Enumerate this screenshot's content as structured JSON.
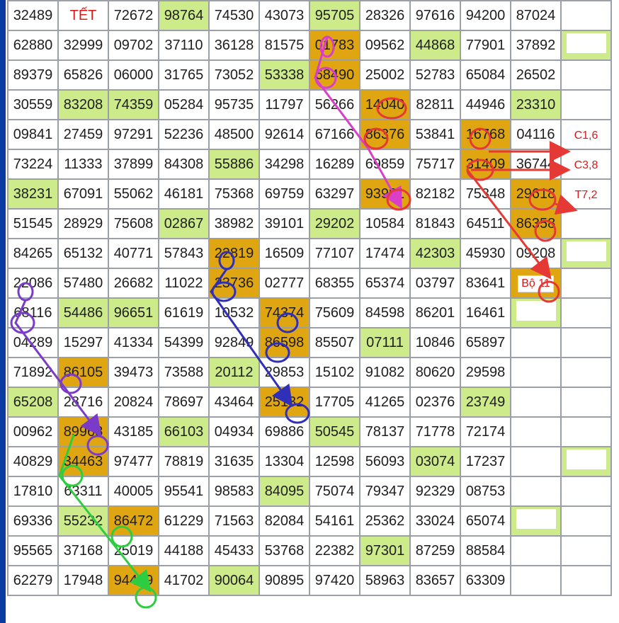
{
  "rows": [
    [
      "32489",
      "TẾT",
      "72672",
      "98764",
      "74530",
      "43073",
      "95705",
      "28326",
      "97616",
      "94200",
      "87024",
      ""
    ],
    [
      "62880",
      "32999",
      "09702",
      "37110",
      "36128",
      "81575",
      "01783",
      "09562",
      "44868",
      "77901",
      "37892",
      ""
    ],
    [
      "89379",
      "65826",
      "06000",
      "31765",
      "73052",
      "53338",
      "68490",
      "25002",
      "52783",
      "65084",
      "26502",
      ""
    ],
    [
      "30559",
      "83208",
      "74359",
      "05284",
      "95735",
      "11797",
      "56266",
      "14040",
      "82811",
      "44946",
      "23310",
      ""
    ],
    [
      "09841",
      "27459",
      "97291",
      "52236",
      "48500",
      "92614",
      "67166",
      "86376",
      "53841",
      "16768",
      "04116",
      "C1,6"
    ],
    [
      "73224",
      "11333",
      "37899",
      "84308",
      "55886",
      "34298",
      "16289",
      "69859",
      "75717",
      "31409",
      "36744",
      "C3,8"
    ],
    [
      "38231",
      "67091",
      "55062",
      "46181",
      "75368",
      "69759",
      "63297",
      "93981",
      "82182",
      "75348",
      "29618",
      "T7,2"
    ],
    [
      "51545",
      "28929",
      "75608",
      "02867",
      "38982",
      "39101",
      "29202",
      "10584",
      "81843",
      "64511",
      "86358",
      ""
    ],
    [
      "84265",
      "65132",
      "40771",
      "57843",
      "22819",
      "16509",
      "77107",
      "17474",
      "42303",
      "45930",
      "09208",
      ""
    ],
    [
      "22086",
      "57480",
      "26682",
      "11022",
      "23736",
      "02777",
      "68355",
      "65374",
      "03797",
      "83641",
      "Bộ 11",
      ""
    ],
    [
      "68116",
      "54486",
      "96651",
      "61619",
      "10532",
      "74374",
      "75609",
      "84598",
      "86201",
      "16461",
      "",
      ""
    ],
    [
      "04289",
      "15297",
      "41334",
      "54399",
      "92849",
      "86598",
      "85507",
      "07111",
      "10846",
      "65897",
      "",
      ""
    ],
    [
      "71892",
      "86105",
      "39473",
      "73588",
      "20112",
      "29853",
      "15102",
      "91082",
      "80620",
      "29598",
      "",
      ""
    ],
    [
      "65208",
      "28716",
      "20824",
      "78697",
      "43464",
      "25132",
      "17705",
      "41265",
      "02376",
      "23749",
      "",
      ""
    ],
    [
      "00962",
      "89968",
      "43185",
      "66103",
      "04934",
      "69886",
      "50545",
      "78137",
      "71778",
      "72174",
      "",
      ""
    ],
    [
      "40829",
      "34463",
      "97477",
      "78819",
      "31635",
      "13304",
      "12598",
      "56093",
      "03074",
      "17237",
      "",
      ""
    ],
    [
      "17810",
      "63311",
      "40005",
      "95541",
      "98583",
      "84095",
      "75074",
      "79347",
      "92329",
      "08753",
      "",
      ""
    ],
    [
      "69336",
      "55232",
      "86472",
      "61229",
      "71563",
      "82084",
      "54161",
      "25362",
      "33024",
      "65074",
      "",
      ""
    ],
    [
      "95565",
      "37168",
      "25019",
      "44188",
      "45433",
      "53768",
      "22382",
      "97301",
      "87259",
      "88584",
      "",
      ""
    ],
    [
      "62279",
      "17948",
      "94499",
      "41702",
      "90064",
      "90895",
      "97420",
      "58963",
      "83657",
      "63309",
      "",
      ""
    ]
  ],
  "green_cells": [
    [
      0,
      3
    ],
    [
      0,
      6
    ],
    [
      1,
      8
    ],
    [
      2,
      5
    ],
    [
      3,
      1
    ],
    [
      3,
      2
    ],
    [
      3,
      10
    ],
    [
      5,
      4
    ],
    [
      6,
      0
    ],
    [
      7,
      3
    ],
    [
      7,
      6
    ],
    [
      8,
      8
    ],
    [
      10,
      1
    ],
    [
      10,
      2
    ],
    [
      11,
      7
    ],
    [
      12,
      4
    ],
    [
      13,
      0
    ],
    [
      13,
      9
    ],
    [
      14,
      3
    ],
    [
      14,
      6
    ],
    [
      15,
      8
    ],
    [
      16,
      5
    ],
    [
      17,
      1
    ],
    [
      18,
      7
    ],
    [
      19,
      4
    ]
  ],
  "orange_cells": [
    [
      1,
      6
    ],
    [
      2,
      6
    ],
    [
      3,
      7
    ],
    [
      4,
      7
    ],
    [
      4,
      9
    ],
    [
      5,
      9
    ],
    [
      6,
      7
    ],
    [
      6,
      10
    ],
    [
      7,
      10
    ],
    [
      8,
      4
    ],
    [
      9,
      4
    ],
    [
      9,
      10
    ],
    [
      10,
      5
    ],
    [
      11,
      5
    ],
    [
      12,
      1
    ],
    [
      13,
      5
    ],
    [
      14,
      1
    ],
    [
      15,
      1
    ],
    [
      17,
      2
    ],
    [
      19,
      2
    ]
  ],
  "red_text_cells": [
    [
      0,
      1
    ]
  ],
  "colors": {
    "green": "#cdeb8b",
    "orange": "#e0a612",
    "magenta": "#d93fc8",
    "red": "#e53935",
    "blue": "#2f2fb8",
    "purple": "#7a3cc8",
    "bright_green": "#2ecc40"
  }
}
